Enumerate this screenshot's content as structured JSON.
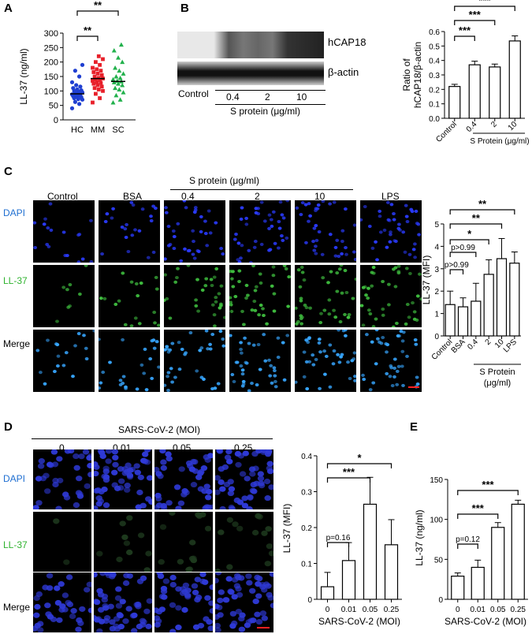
{
  "panels": {
    "A": "A",
    "B": "B",
    "C": "C",
    "D": "D",
    "E": "E"
  },
  "panelA": {
    "chart_data": {
      "type": "scatter",
      "categories": [
        "HC",
        "MM",
        "SC"
      ],
      "ylabel": "LL-37 (ng/ml)",
      "ylim": [
        0,
        300
      ],
      "yticks": [
        "0",
        "50",
        "100",
        "150",
        "200",
        "250",
        "300"
      ],
      "means": [
        90,
        143,
        133
      ],
      "colors": [
        "#1f3fd1",
        "#e8202a",
        "#22b14c"
      ],
      "points": [
        [
          40,
          55,
          62,
          70,
          72,
          75,
          78,
          80,
          82,
          85,
          86,
          88,
          90,
          92,
          95,
          98,
          100,
          102,
          105,
          110,
          115,
          120,
          130,
          150,
          170,
          190
        ],
        [
          60,
          75,
          90,
          100,
          105,
          110,
          115,
          120,
          125,
          128,
          130,
          135,
          138,
          140,
          143,
          145,
          150,
          155,
          160,
          165,
          170,
          175,
          180,
          190,
          200,
          210,
          220
        ],
        [
          60,
          70,
          85,
          95,
          105,
          110,
          120,
          125,
          130,
          133,
          135,
          140,
          145,
          150,
          160,
          170,
          180,
          200,
          215,
          240,
          260
        ]
      ],
      "sig": [
        "**",
        "**"
      ]
    }
  },
  "panelB": {
    "blot": {
      "bands": [
        "hCAP18",
        "β-actin"
      ],
      "lanes": [
        "Control",
        "0.4",
        "2",
        "10"
      ],
      "xlabel": "S protein (μg/ml)"
    },
    "chart_data": {
      "type": "bar",
      "categories": [
        "Control",
        "0.4",
        "2",
        "10"
      ],
      "values": [
        0.22,
        0.37,
        0.355,
        0.535
      ],
      "errors": [
        0.015,
        0.025,
        0.02,
        0.035
      ],
      "ylabel_line1": "Ratio of",
      "ylabel_line2": "hCAP18/β-actin",
      "xlabel": "S Protein (μg/ml)",
      "ylim": [
        0,
        0.6
      ],
      "yticks": [
        "0.0",
        "0.1",
        "0.2",
        "0.3",
        "0.4",
        "0.5",
        "0.6"
      ],
      "sig": [
        "***",
        "***",
        "***"
      ]
    }
  },
  "panelC": {
    "header": "S protein (μg/ml)",
    "columns": [
      "Control",
      "BSA",
      "0.4",
      "2",
      "10",
      "LPS"
    ],
    "rows": [
      "DAPI",
      "LL-37",
      "Merge"
    ],
    "chart_data": {
      "type": "bar",
      "categories": [
        "Control",
        "BSA",
        "0.4",
        "2",
        "10",
        "LPS"
      ],
      "values": [
        1.4,
        1.3,
        1.55,
        2.75,
        3.45,
        3.25
      ],
      "errors": [
        0.6,
        0.4,
        0.8,
        0.65,
        0.9,
        0.5
      ],
      "ylabel": "LL-37 (MFI)",
      "xlabel_line1": "S Protein",
      "xlabel_line2": "(μg/ml)",
      "ylim": [
        0,
        5
      ],
      "yticks": [
        "0",
        "1",
        "2",
        "3",
        "4",
        "5"
      ],
      "annotations": [
        "p>0.99",
        "p>0.99",
        "*",
        "**",
        "**"
      ]
    }
  },
  "panelD": {
    "header": "SARS-CoV-2 (MOI)",
    "columns": [
      "0",
      "0.01",
      "0.05",
      "0.25"
    ],
    "rows": [
      "DAPI",
      "LL-37",
      "Merge"
    ],
    "chart_data": {
      "type": "bar",
      "categories": [
        "0",
        "0.01",
        "0.05",
        "0.25"
      ],
      "values": [
        0.035,
        0.108,
        0.265,
        0.152
      ],
      "errors": [
        0.04,
        0.05,
        0.075,
        0.07
      ],
      "ylabel": "LL-37 (MFI)",
      "xlabel": "SARS-CoV-2 (MOI)",
      "ylim": [
        0,
        0.4
      ],
      "yticks": [
        "0",
        "0.1",
        "0.2",
        "0.3",
        "0.4"
      ],
      "annotations": [
        "p=0.16",
        "***",
        "*"
      ]
    }
  },
  "panelE": {
    "chart_data": {
      "type": "bar",
      "categories": [
        "0",
        "0.01",
        "0.05",
        "0.25"
      ],
      "values": [
        29,
        40,
        90,
        119
      ],
      "errors": [
        4,
        9,
        6,
        5
      ],
      "ylabel": "LL-37 (ng/ml)",
      "xlabel": "SARS-CoV-2 (MOI)",
      "ylim": [
        0,
        150
      ],
      "yticks": [
        "0",
        "50",
        "100",
        "150"
      ],
      "annotations": [
        "p=0.12",
        "***",
        "***"
      ]
    }
  }
}
